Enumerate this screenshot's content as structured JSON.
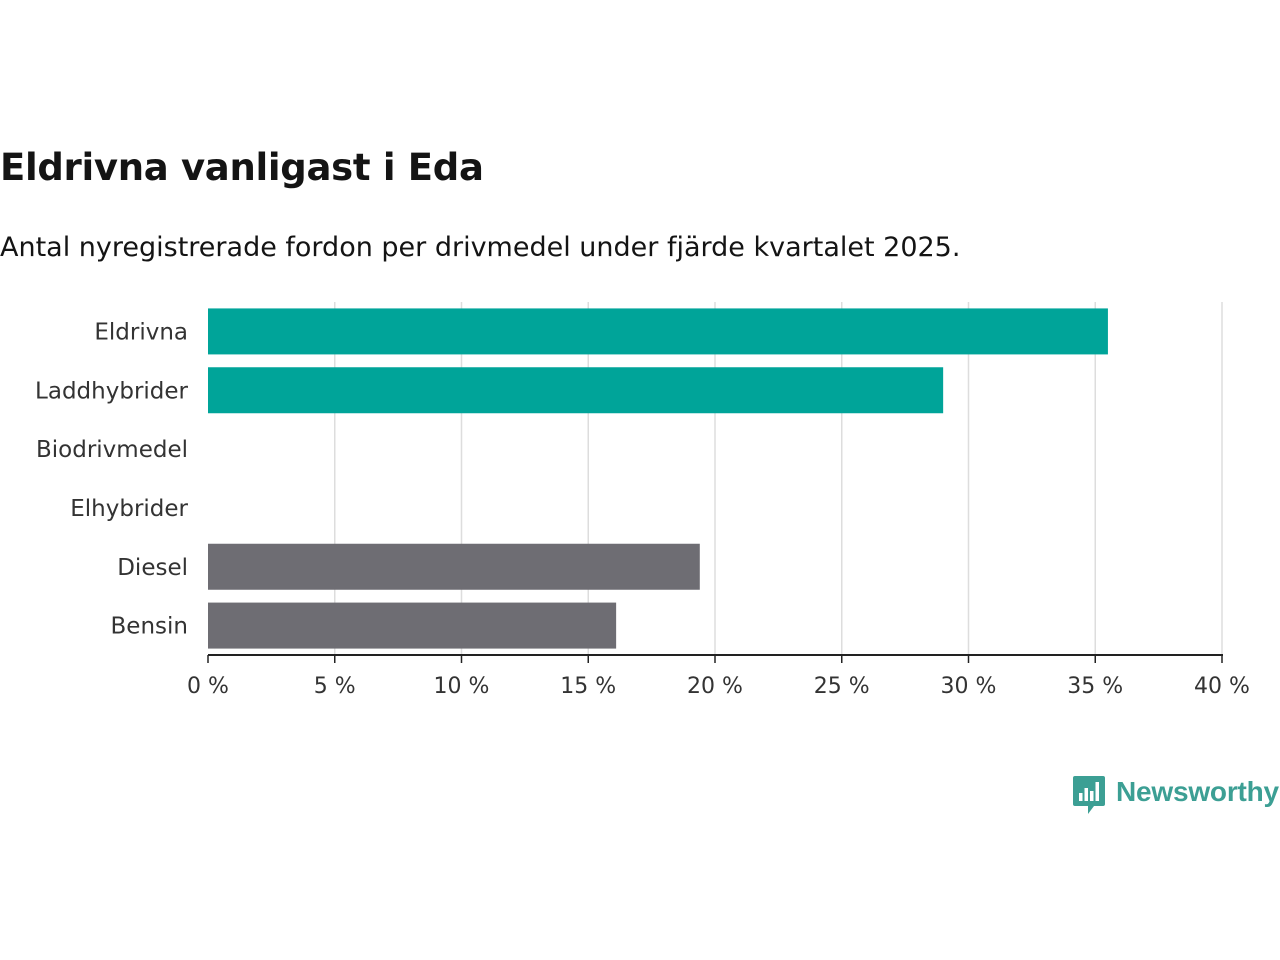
{
  "header": {
    "title": "Eldrivna vanligast i Eda",
    "subtitle": "Antal nyregistrerade fordon per drivmedel under fjärde kvartalet 2025."
  },
  "chart_data": {
    "type": "bar",
    "orientation": "horizontal",
    "categories": [
      "Eldrivna",
      "Laddhybrider",
      "Biodrivmedel",
      "Elhybrider",
      "Diesel",
      "Bensin"
    ],
    "values": [
      35.5,
      29.0,
      0,
      0,
      19.4,
      16.1
    ],
    "bar_colors": [
      "#00a499",
      "#00a499",
      "#00a499",
      "#00a499",
      "#6e6d73",
      "#6e6d73"
    ],
    "xlim": [
      0,
      40
    ],
    "xticks": [
      0,
      5,
      10,
      15,
      20,
      25,
      30,
      35,
      40
    ],
    "xtick_labels": [
      "0 %",
      "5 %",
      "10 %",
      "15 %",
      "20 %",
      "25 %",
      "30 %",
      "35 %",
      "40 %"
    ],
    "xlabel": "",
    "ylabel": "",
    "grid": "vertical"
  },
  "branding": {
    "name": "Newsworthy",
    "color": "#3c9f94"
  }
}
